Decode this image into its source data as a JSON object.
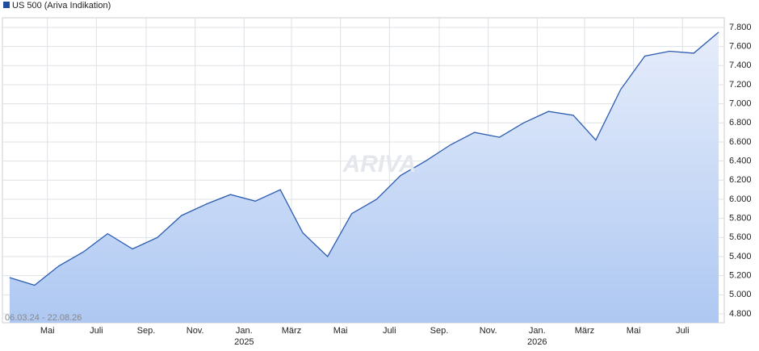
{
  "chart_data": {
    "type": "line",
    "legend_label": "US 500 (Ariva Indikation)",
    "date_range": "06.03.24 - 22.08.26",
    "watermark": "ARIVA",
    "x": [
      "2024-03",
      "2024-04",
      "2024-05",
      "2024-06",
      "2024-07",
      "2024-08",
      "2024-09",
      "2024-10",
      "2024-11",
      "2024-12",
      "2025-01",
      "2025-02",
      "2025-03",
      "2025-04",
      "2025-05",
      "2025-06",
      "2025-07",
      "2025-08",
      "2025-09",
      "2025-10",
      "2025-11",
      "2025-12",
      "2026-01",
      "2026-02",
      "2026-03",
      "2026-04",
      "2026-05",
      "2026-06",
      "2026-07",
      "2026-08"
    ],
    "series": [
      {
        "name": "US 500",
        "color": "#2b5cb0",
        "values": [
          5180,
          5100,
          5300,
          5450,
          5640,
          5480,
          5600,
          5830,
          5950,
          6050,
          5980,
          6100,
          5650,
          5400,
          5850,
          6000,
          6250,
          6400,
          6570,
          6700,
          6650,
          6800,
          6920,
          6880,
          6620,
          7150,
          7500,
          7550,
          7530,
          7750
        ]
      }
    ],
    "xlim": [
      "2024-03-06",
      "2026-08-22"
    ],
    "xticks": [
      {
        "value": "2024-05",
        "label": "Mai"
      },
      {
        "value": "2024-07",
        "label": "Juli"
      },
      {
        "value": "2024-09",
        "label": "Sep."
      },
      {
        "value": "2024-11",
        "label": "Nov."
      },
      {
        "value": "2025-01",
        "label": "Jan."
      },
      {
        "value": "2025-03",
        "label": "März"
      },
      {
        "value": "2025-05",
        "label": "Mai"
      },
      {
        "value": "2025-07",
        "label": "Juli"
      },
      {
        "value": "2025-09",
        "label": "Sep."
      },
      {
        "value": "2025-11",
        "label": "Nov."
      },
      {
        "value": "2026-01",
        "label": "Jan."
      },
      {
        "value": "2026-03",
        "label": "März"
      },
      {
        "value": "2026-05",
        "label": "Mai"
      },
      {
        "value": "2026-07",
        "label": "Juli"
      }
    ],
    "year_ticks": [
      {
        "value": "2025-01",
        "label": "2025"
      },
      {
        "value": "2026-01",
        "label": "2026"
      }
    ],
    "ylim": [
      4707,
      7901
    ],
    "yticks": [
      {
        "value": 4800,
        "label": "4.800"
      },
      {
        "value": 5000,
        "label": "5.000"
      },
      {
        "value": 5200,
        "label": "5.200"
      },
      {
        "value": 5400,
        "label": "5.400"
      },
      {
        "value": 5600,
        "label": "5.600"
      },
      {
        "value": 5800,
        "label": "5.800"
      },
      {
        "value": 6000,
        "label": "6.000"
      },
      {
        "value": 6200,
        "label": "6.200"
      },
      {
        "value": 6400,
        "label": "6.400"
      },
      {
        "value": 6600,
        "label": "6.600"
      },
      {
        "value": 6800,
        "label": "6.800"
      },
      {
        "value": 7000,
        "label": "7.000"
      },
      {
        "value": 7200,
        "label": "7.200"
      },
      {
        "value": 7400,
        "label": "7.400"
      },
      {
        "value": 7600,
        "label": "7.600"
      },
      {
        "value": 7800,
        "label": "7.800"
      }
    ],
    "grid": true
  }
}
